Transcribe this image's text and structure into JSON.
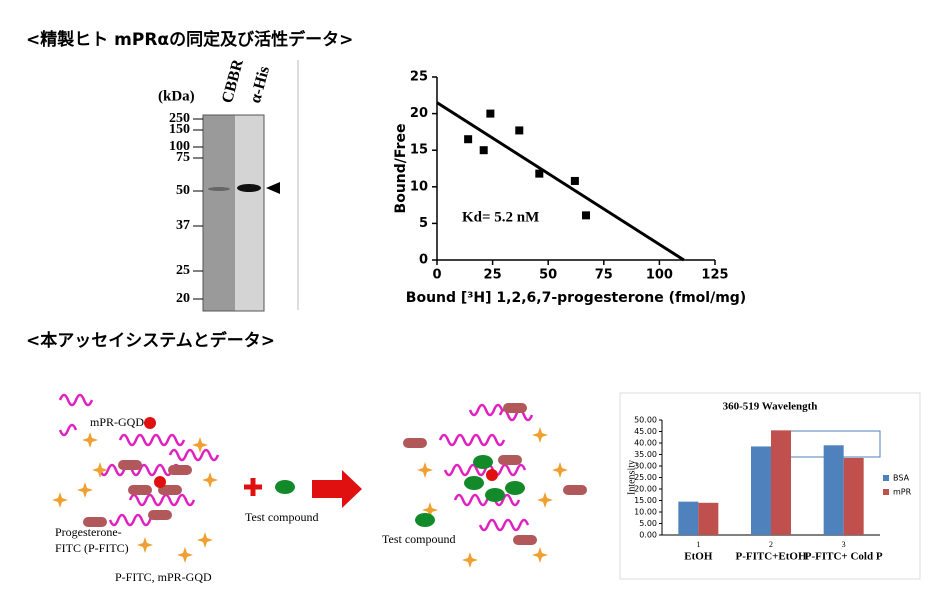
{
  "sections": [
    "<精製ヒト mPRαの同定及び活性データ>",
    "<本アッセイシステムとデータ>"
  ],
  "gel": {
    "unit": "(kDa)",
    "lanes": [
      "CBBR",
      "α-His"
    ],
    "markers": [
      "250",
      "150",
      "100",
      "75",
      "50",
      "37",
      "25",
      "20"
    ]
  },
  "diagram": {
    "labels": [
      "mPR-GQD",
      "Progesterone-",
      "FITC (P-FITC)",
      "P-FITC, mPR-GQD",
      "Test compound",
      "Test compound"
    ]
  },
  "chart_data": [
    {
      "type": "scatter",
      "x_label": "Bound [³H] 1,2,6,7-progesterone (fmol/mg)",
      "y_label": "Bound/Free",
      "annotation": "Kd= 5.2 nM",
      "points": {
        "x": [
          14,
          21,
          24,
          37,
          46,
          62,
          67
        ],
        "values": [
          16.5,
          15,
          20,
          17.7,
          11.8,
          10.8,
          6.1
        ],
        "color": "#000000"
      },
      "fit": {
        "x": [
          0,
          111
        ],
        "values": [
          21.5,
          0
        ],
        "color": "#000000"
      },
      "xlim": [
        0,
        125
      ],
      "xticks": [
        0,
        25,
        50,
        75,
        100,
        125
      ],
      "ylim": [
        0,
        25
      ],
      "yticks": [
        0,
        5,
        10,
        15,
        20,
        25
      ]
    },
    {
      "type": "bar",
      "title": "360-519 Wavelength",
      "y_label": "Intensity",
      "category_numbers": [
        "1",
        "2",
        "3"
      ],
      "categories": [
        "EtOH",
        "P-FITC+EtOH",
        "P-FITC+ Cold P"
      ],
      "series": [
        {
          "name": "BSA",
          "color": "#4f81bd",
          "values": [
            14.5,
            38.5,
            39
          ]
        },
        {
          "name": "mPR",
          "color": "#c0504d",
          "values": [
            14,
            45.5,
            33.5
          ]
        }
      ],
      "ylim": [
        0,
        50
      ],
      "yticks": [
        {
          "value": 0,
          "label": "0.00"
        },
        {
          "value": 5,
          "label": "5.00"
        },
        {
          "value": 10,
          "label": "10.00"
        },
        {
          "value": 15,
          "label": "15.00"
        },
        {
          "value": 20,
          "label": "20.00"
        },
        {
          "value": 25,
          "label": "25.00"
        },
        {
          "value": 30,
          "label": "30.00"
        },
        {
          "value": 35,
          "label": "35.00"
        },
        {
          "value": 40,
          "label": "40.00"
        },
        {
          "value": 45,
          "label": "45.00"
        },
        {
          "value": 50,
          "label": "50.00"
        }
      ],
      "legend": "right"
    }
  ]
}
